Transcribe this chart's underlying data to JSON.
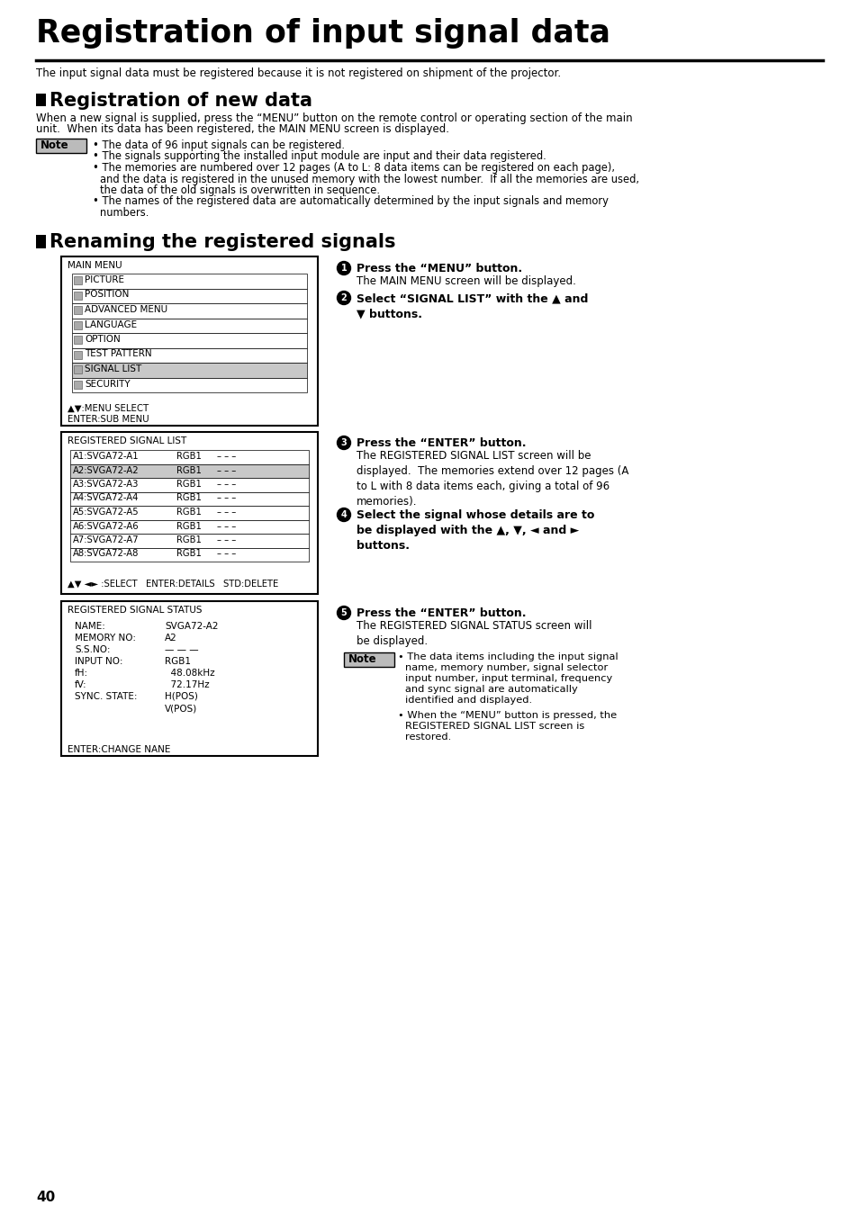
{
  "title": "Registration of input signal data",
  "subtitle": "The input signal data must be registered because it is not registered on shipment of the projector.",
  "section1_title": "Registration of new data",
  "section1_body1": "When a new signal is supplied, press the “MENU” button on the remote control or operating section of the main",
  "section1_body2": "unit.  When its data has been registered, the MAIN MENU screen is displayed.",
  "note1_bullets": [
    "The data of 96 input signals can be registered.",
    "The signals supporting the installed input module are input and their data registered.",
    "The memories are numbered over 12 pages (A to L: 8 data items can be registered on each page),\n    and the data is registered in the unused memory with the lowest number.  If all the memories are used,\n    the data of the old signals is overwritten in sequence.",
    "The names of the registered data are automatically determined by the input signals and memory\n    numbers."
  ],
  "section2_title": "Renaming the registered signals",
  "main_menu_label": "MAIN MENU",
  "main_menu_items": [
    {
      "label": "PICTURE",
      "highlight": false
    },
    {
      "label": "POSITION",
      "highlight": false
    },
    {
      "label": "ADVANCED MENU",
      "highlight": false
    },
    {
      "label": "LANGUAGE",
      "highlight": false
    },
    {
      "label": "OPTION",
      "highlight": false
    },
    {
      "label": "TEST PATTERN",
      "highlight": false
    },
    {
      "label": "SIGNAL LIST",
      "highlight": true
    },
    {
      "label": "SECURITY",
      "highlight": false
    }
  ],
  "menu_footer1": "▲▼:MENU SELECT",
  "menu_footer2": "ENTER:SUB MENU",
  "signal_list_label": "REGISTERED SIGNAL LIST",
  "signal_list_items": [
    {
      "name": "A1:SVGA72-A1",
      "input": "RGB1",
      "highlight": false
    },
    {
      "name": "A2:SVGA72-A2",
      "input": "RGB1",
      "highlight": true
    },
    {
      "name": "A3:SVGA72-A3",
      "input": "RGB1",
      "highlight": false
    },
    {
      "name": "A4:SVGA72-A4",
      "input": "RGB1",
      "highlight": false
    },
    {
      "name": "A5:SVGA72-A5",
      "input": "RGB1",
      "highlight": false
    },
    {
      "name": "A6:SVGA72-A6",
      "input": "RGB1",
      "highlight": false
    },
    {
      "name": "A7:SVGA72-A7",
      "input": "RGB1",
      "highlight": false
    },
    {
      "name": "A8:SVGA72-A8",
      "input": "RGB1",
      "highlight": false
    }
  ],
  "signal_list_footer": "▲▼ ◄► :SELECT   ENTER:DETAILS   STD:DELETE",
  "signal_status_label": "REGISTERED SIGNAL STATUS",
  "signal_status_items": [
    {
      "label": "NAME:",
      "value": "SVGA72-A2"
    },
    {
      "label": "MEMORY NO:",
      "value": "A2"
    },
    {
      "label": "S.S.NO:",
      "value": "— — —"
    },
    {
      "label": "INPUT NO:",
      "value": "RGB1"
    },
    {
      "label": "fH:",
      "value": "  48.08kHz"
    },
    {
      "label": "fV:",
      "value": "  72.17Hz"
    },
    {
      "label": "SYNC. STATE:",
      "value": "H(POS)"
    },
    {
      "label": "",
      "value": "V(POS)"
    }
  ],
  "signal_status_footer": "ENTER:CHANGE NANE",
  "steps": [
    {
      "num": "1",
      "bold_text": "Press the “MENU” button.",
      "normal_text": "The MAIN MENU screen will be displayed."
    },
    {
      "num": "2",
      "bold_text": "Select “SIGNAL LIST” with the ▲ and\n▼ buttons.",
      "normal_text": ""
    },
    {
      "num": "3",
      "bold_text": "Press the “ENTER” button.",
      "normal_text": "The REGISTERED SIGNAL LIST screen will be\ndisplayed.  The memories extend over 12 pages (A\nto L with 8 data items each, giving a total of 96\nmemories)."
    },
    {
      "num": "4",
      "bold_text": "Select the signal whose details are to\nbe displayed with the ▲, ▼, ◄ and ►\nbuttons.",
      "normal_text": ""
    },
    {
      "num": "5",
      "bold_text": "Press the “ENTER” button.",
      "normal_text": "The REGISTERED SIGNAL STATUS screen will\nbe displayed."
    }
  ],
  "note2_bullets": [
    "The data items including the input signal\nname, memory number, signal selector\ninput number, input terminal, frequency\nand sync signal are automatically\nidentified and displayed.",
    "When the “MENU” button is pressed, the\nREGISTERED SIGNAL LIST screen is\nrestored."
  ],
  "page_num": "40",
  "bg_color": "#ffffff",
  "highlight_color": "#c8c8c8",
  "note_bg_color": "#bbbbbb"
}
